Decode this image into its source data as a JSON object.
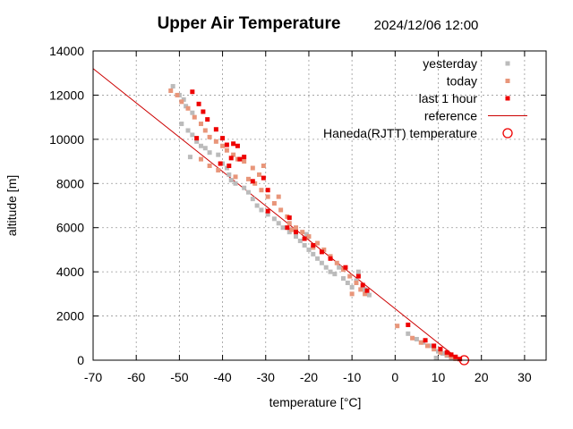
{
  "chart_data": {
    "type": "scatter",
    "title": "Upper Air Temperature",
    "timestamp": "2024/12/06 12:00",
    "xlabel": "temperature  [°C]",
    "ylabel": "altitude  [m]",
    "xlim": [
      -70,
      35
    ],
    "ylim": [
      0,
      14000
    ],
    "xticks": [
      -70,
      -60,
      -50,
      -40,
      -30,
      -20,
      -10,
      0,
      10,
      20,
      30
    ],
    "yticks": [
      0,
      2000,
      4000,
      6000,
      8000,
      10000,
      12000,
      14000
    ],
    "grid": true,
    "legend_position": "top-right",
    "colors": {
      "yesterday": "#bbbbbb",
      "today": "#e8967a",
      "last_1_hour": "#ee0000",
      "reference": "#cc0000",
      "haneda": "#ee0000"
    },
    "legend": [
      {
        "key": "yesterday",
        "label": "yesterday",
        "marker": "dot"
      },
      {
        "key": "today",
        "label": "today",
        "marker": "dot"
      },
      {
        "key": "last_1_hour",
        "label": "last 1 hour",
        "marker": "dot"
      },
      {
        "key": "reference",
        "label": "reference",
        "marker": "line"
      },
      {
        "key": "haneda",
        "label": "Haneda(RJTT) temperature",
        "marker": "circle"
      }
    ],
    "series": [
      {
        "name": "yesterday",
        "points": [
          [
            -51.5,
            12400
          ],
          [
            -50,
            12000
          ],
          [
            -49,
            11800
          ],
          [
            -48.5,
            11500
          ],
          [
            -47,
            11200
          ],
          [
            -49.5,
            10700
          ],
          [
            -48,
            10400
          ],
          [
            -47,
            10200
          ],
          [
            -46,
            9900
          ],
          [
            -45,
            9700
          ],
          [
            -47.5,
            9200
          ],
          [
            -44,
            9600
          ],
          [
            -43,
            9400
          ],
          [
            -41,
            9300
          ],
          [
            -40,
            8900
          ],
          [
            -39,
            8700
          ],
          [
            -38.5,
            8400
          ],
          [
            -38,
            8150
          ],
          [
            -37,
            8000
          ],
          [
            -35,
            7800
          ],
          [
            -34,
            7600
          ],
          [
            -33,
            7300
          ],
          [
            -32,
            7000
          ],
          [
            -31,
            6800
          ],
          [
            -29.5,
            6600
          ],
          [
            -28,
            6400
          ],
          [
            -27,
            6200
          ],
          [
            -26,
            6000
          ],
          [
            -24.5,
            5800
          ],
          [
            -23,
            5600
          ],
          [
            -22,
            5400
          ],
          [
            -21,
            5200
          ],
          [
            -20,
            5000
          ],
          [
            -19,
            4800
          ],
          [
            -18,
            4600
          ],
          [
            -17,
            4400
          ],
          [
            -16,
            4200
          ],
          [
            -15,
            4000
          ],
          [
            -14,
            3900
          ],
          [
            -12,
            3700
          ],
          [
            -11,
            3500
          ],
          [
            -10,
            3300
          ],
          [
            -9,
            3600
          ],
          [
            -7,
            3200
          ],
          [
            -6,
            2950
          ],
          [
            3,
            1200
          ],
          [
            5,
            950
          ],
          [
            6.5,
            800
          ],
          [
            8,
            650
          ],
          [
            9,
            500
          ],
          [
            10,
            400
          ],
          [
            11,
            300
          ],
          [
            12,
            200
          ],
          [
            13,
            100
          ],
          [
            9.5,
            100
          ],
          [
            -23,
            5900
          ],
          [
            -20.5,
            5700
          ],
          [
            -13,
            4200
          ],
          [
            -8.5,
            4000
          ]
        ]
      },
      {
        "name": "today",
        "points": [
          [
            -52,
            12200
          ],
          [
            -50.5,
            12000
          ],
          [
            -49.5,
            11700
          ],
          [
            -48,
            11400
          ],
          [
            -46.5,
            11000
          ],
          [
            -45,
            10700
          ],
          [
            -44,
            10400
          ],
          [
            -43,
            10100
          ],
          [
            -41.5,
            9900
          ],
          [
            -40,
            9700
          ],
          [
            -39,
            9500
          ],
          [
            -37.5,
            9300
          ],
          [
            -36.5,
            9100
          ],
          [
            -35,
            9000
          ],
          [
            -33,
            8700
          ],
          [
            -31.5,
            8400
          ],
          [
            -34,
            8200
          ],
          [
            -32.5,
            8000
          ],
          [
            -31,
            7700
          ],
          [
            -29.5,
            7400
          ],
          [
            -28,
            7100
          ],
          [
            -26.5,
            6800
          ],
          [
            -25,
            6500
          ],
          [
            -24.5,
            6200
          ],
          [
            -23,
            6000
          ],
          [
            -21.5,
            5800
          ],
          [
            -20,
            5600
          ],
          [
            -18,
            5300
          ],
          [
            -16.5,
            5000
          ],
          [
            -15,
            4700
          ],
          [
            -13.5,
            4400
          ],
          [
            -12,
            4100
          ],
          [
            -10.5,
            3800
          ],
          [
            -9,
            3500
          ],
          [
            -8,
            3200
          ],
          [
            -7,
            3000
          ],
          [
            -10,
            3000
          ],
          [
            0.5,
            1550
          ],
          [
            4,
            1000
          ],
          [
            6,
            800
          ],
          [
            7.5,
            650
          ],
          [
            9,
            500
          ],
          [
            10.5,
            350
          ],
          [
            12,
            250
          ],
          [
            13,
            150
          ],
          [
            14,
            60
          ],
          [
            -45,
            9100
          ],
          [
            -43,
            8800
          ],
          [
            -41,
            8600
          ],
          [
            -37,
            8300
          ],
          [
            -30.5,
            8800
          ],
          [
            -27,
            7400
          ],
          [
            -24,
            5900
          ],
          [
            -19,
            5100
          ]
        ]
      },
      {
        "name": "last 1 hour",
        "points": [
          [
            -47,
            12150
          ],
          [
            -45.5,
            11600
          ],
          [
            -44.5,
            11250
          ],
          [
            -43.5,
            10900
          ],
          [
            -41.5,
            10450
          ],
          [
            -40,
            10050
          ],
          [
            -39,
            9750
          ],
          [
            -37.5,
            9800
          ],
          [
            -36.5,
            9700
          ],
          [
            -38,
            9150
          ],
          [
            -36,
            9100
          ],
          [
            -35,
            9200
          ],
          [
            -40.5,
            8900
          ],
          [
            -38.5,
            8800
          ],
          [
            -30.5,
            8250
          ],
          [
            -29.5,
            7700
          ],
          [
            -29.5,
            6750
          ],
          [
            -24.5,
            6450
          ],
          [
            -25,
            6000
          ],
          [
            -23,
            5800
          ],
          [
            -21,
            5500
          ],
          [
            -19,
            5200
          ],
          [
            -17,
            4900
          ],
          [
            -15,
            4600
          ],
          [
            -11.5,
            4200
          ],
          [
            -8.5,
            3800
          ],
          [
            -7.5,
            3400
          ],
          [
            -6.5,
            3150
          ],
          [
            3,
            1600
          ],
          [
            7,
            900
          ],
          [
            9,
            650
          ],
          [
            10.5,
            500
          ],
          [
            12,
            350
          ],
          [
            13,
            250
          ],
          [
            14,
            150
          ],
          [
            15,
            50
          ],
          [
            -46,
            10050
          ],
          [
            -33,
            8100
          ]
        ]
      }
    ],
    "reference_line": {
      "name": "reference",
      "x": [
        -70,
        15
      ],
      "y": [
        13200,
        0
      ]
    },
    "haneda": {
      "name": "Haneda(RJTT) temperature",
      "x": 16,
      "y": 0
    }
  }
}
